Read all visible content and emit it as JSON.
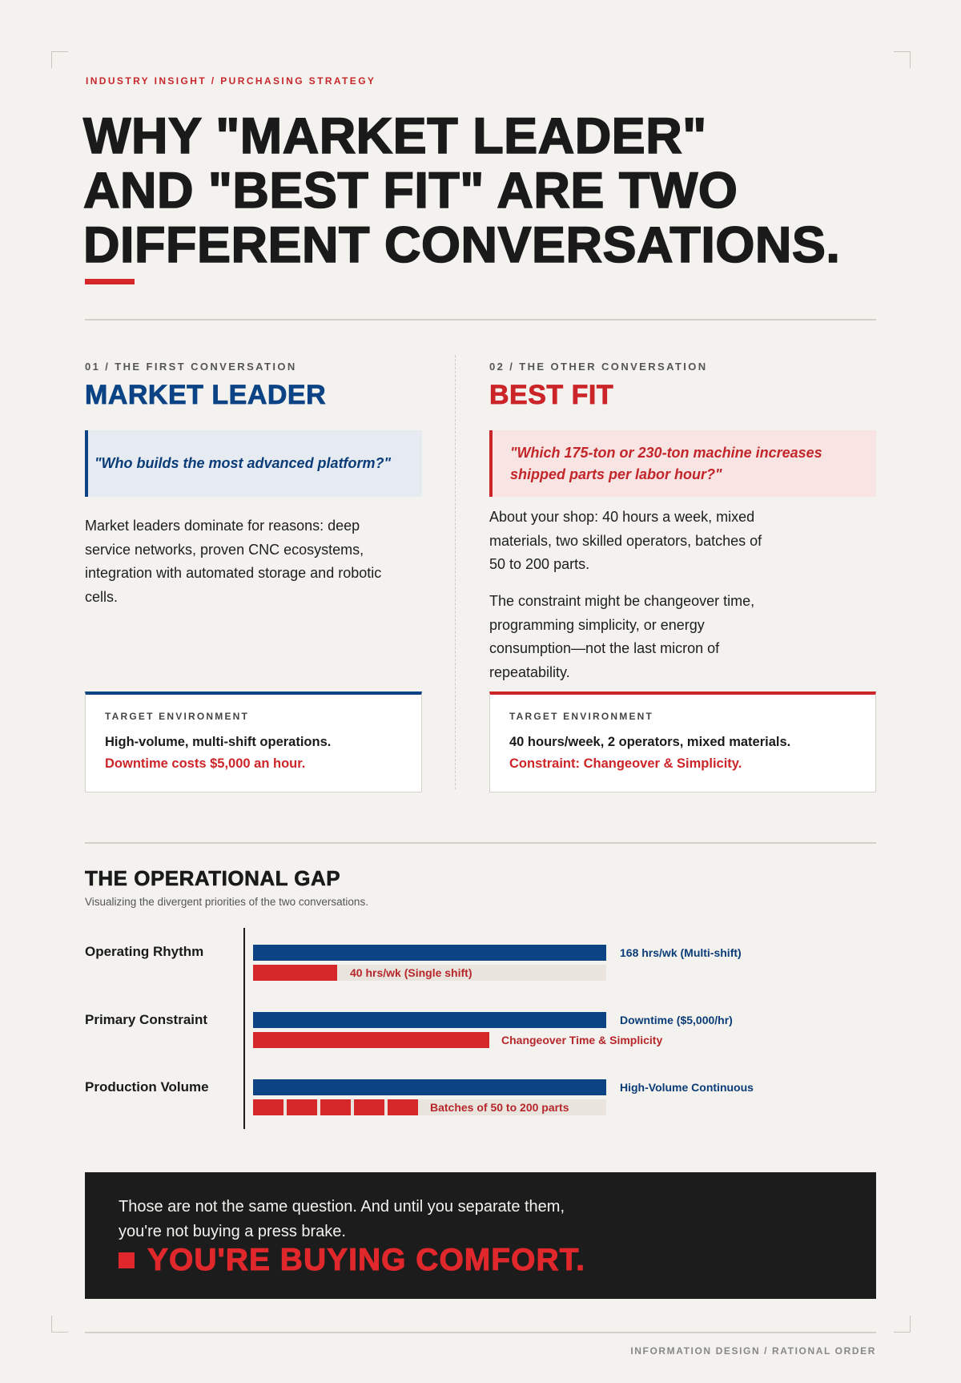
{
  "header": {
    "eyebrow": "INDUSTRY INSIGHT / PURCHASING STRATEGY",
    "title_lines": [
      "WHY \"MARKET LEADER\"",
      "AND \"BEST FIT\" ARE TWO",
      "DIFFERENT CONVERSATIONS."
    ]
  },
  "columns": [
    {
      "eyebrow": "01 / THE FIRST CONVERSATION",
      "heading": "MARKET LEADER",
      "quote": "\"Who builds the most advanced platform?\"",
      "paragraphs": [
        "Market leaders dominate for reasons: deep service networks, proven CNC ecosystems, integration with automated storage and robotic cells."
      ],
      "target": {
        "label": "TARGET ENVIRONMENT",
        "line1": "High-volume, multi-shift operations.",
        "line2": "Downtime costs $5,000 an hour."
      }
    },
    {
      "eyebrow": "02 / THE OTHER CONVERSATION",
      "heading": "BEST FIT",
      "quote": "\"Which 175-ton or 230-ton machine increases shipped parts per labor hour?\"",
      "paragraphs": [
        "About your shop: 40 hours a week, mixed materials, two skilled operators, batches of 50 to 200 parts.",
        "The constraint might be changeover time, programming simplicity, or energy consumption—not the last micron of repeatability."
      ],
      "target": {
        "label": "TARGET ENVIRONMENT",
        "line1": "40 hours/week, 2 operators, mixed materials.",
        "line2": "Constraint: Changeover & Simplicity."
      }
    }
  ],
  "gap": {
    "title": "THE OPERATIONAL GAP",
    "subtitle": "Visualizing the divergent priorities of the two conversations.",
    "rows": [
      {
        "label": "Operating Rhythm",
        "leader": "168 hrs/wk (Multi-shift)",
        "fit": "40 hrs/wk (Single shift)"
      },
      {
        "label": "Primary Constraint",
        "leader": "Downtime ($5,000/hr)",
        "fit": "Changeover Time & Simplicity"
      },
      {
        "label": "Production Volume",
        "leader": "High-Volume Continuous",
        "fit": "Batches of 50 to 200 parts"
      }
    ]
  },
  "closing": {
    "lines": [
      "Those are not the same question. And until you separate them,",
      "you're not buying a press brake."
    ],
    "emphasis": "YOU'RE BUYING COMFORT."
  },
  "footer": "INFORMATION DESIGN / RATIONAL ORDER"
}
